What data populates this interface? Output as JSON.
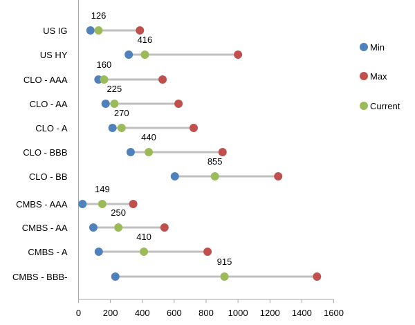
{
  "chart_data": {
    "type": "scatter",
    "subtype": "dumbbell",
    "title": "",
    "xlabel": "",
    "ylabel": "",
    "xlim": [
      0,
      1600
    ],
    "xticks": [
      0,
      200,
      400,
      600,
      800,
      1000,
      1200,
      1400,
      1600
    ],
    "grid": false,
    "legend_position": "right",
    "categories": [
      "US IG",
      "US HY",
      "CLO - AAA",
      "CLO - AA",
      "CLO - A",
      "CLO - BBB",
      "CLO - BB",
      "CMBS - AAA",
      "CMBS - AA",
      "CMBS - A",
      "CMBS - BBB-"
    ],
    "series": [
      {
        "name": "Min",
        "color": "#4F81BD",
        "values": [
          75,
          315,
          125,
          170,
          213,
          327,
          604,
          25,
          93,
          127,
          231
        ]
      },
      {
        "name": "Max",
        "color": "#C0504D",
        "values": [
          385,
          1000,
          527,
          627,
          722,
          903,
          1252,
          343,
          539,
          809,
          1495
        ]
      },
      {
        "name": "Current",
        "color": "#9BBB59",
        "values": [
          126,
          416,
          160,
          225,
          270,
          440,
          855,
          149,
          250,
          410,
          915
        ]
      }
    ],
    "data_labels": [
      "126",
      "416",
      "160",
      "225",
      "270",
      "440",
      "855",
      "149",
      "250",
      "410",
      "915"
    ],
    "range_line_color": "#BFBFBF"
  }
}
